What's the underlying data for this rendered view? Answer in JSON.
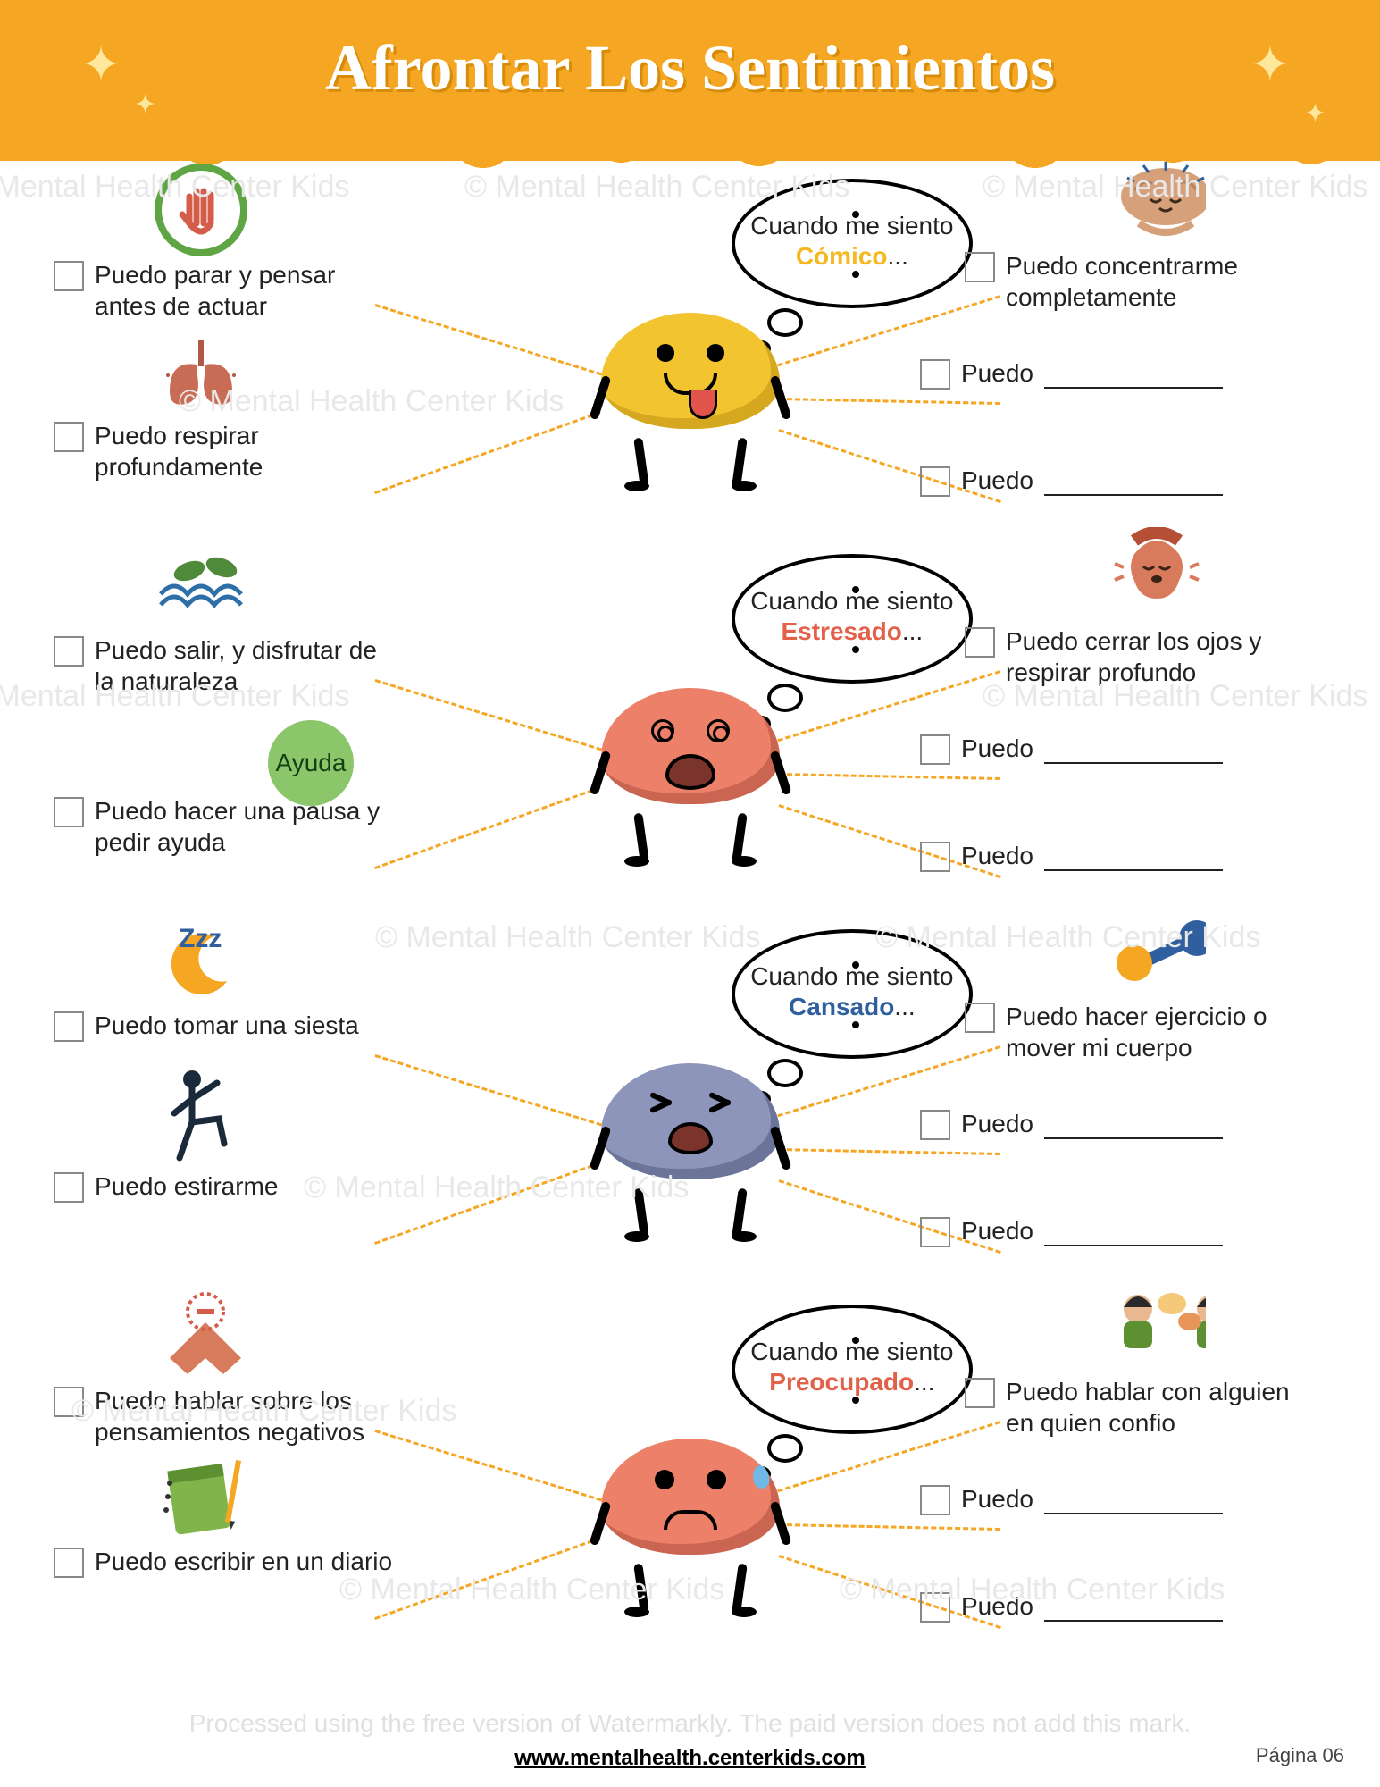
{
  "header": {
    "title": "Afrontar Los Sentimientos"
  },
  "footer": {
    "url": "www.mentalhealth.centerkids.com",
    "page": "Página 06",
    "watermark_bottom": "Processed using the free version of Watermarkly. The paid version does not add this mark."
  },
  "watermark_text": "© Mental Health Center Kids",
  "bubble_prefix": "Cuando me siento",
  "blank_prefix": "Puedo",
  "sections": [
    {
      "feeling": "Cómico",
      "feeling_color": "#f5b820",
      "brain_color": "#f2c430",
      "brain_shadow": "#d6a820",
      "face": "silly",
      "left": [
        {
          "icon": "stop-hand",
          "text": "Puedo parar y pensar antes de actuar"
        },
        {
          "icon": "lungs",
          "text": "Puedo respirar profundamente"
        }
      ],
      "right": [
        {
          "icon": "meditate-brain",
          "text": "Puedo concentrarme completamente"
        },
        {
          "blank": true
        },
        {
          "blank": true
        }
      ]
    },
    {
      "feeling": "Estresado",
      "feeling_color": "#e2614a",
      "brain_color": "#ed8068",
      "brain_shadow": "#c96550",
      "face": "dizzy",
      "left": [
        {
          "icon": "nature",
          "text": "Puedo salir, y disfrutar de la naturaleza"
        },
        {
          "icon": "ayuda",
          "text": "Puedo hacer una pausa y pedir ayuda"
        }
      ],
      "right": [
        {
          "icon": "relax-face",
          "text": "Puedo cerrar los ojos y respirar profundo"
        },
        {
          "blank": true
        },
        {
          "blank": true
        }
      ]
    },
    {
      "feeling": "Cansado",
      "feeling_color": "#2f5f9e",
      "brain_color": "#8d95bb",
      "brain_shadow": "#6c7499",
      "face": "tired",
      "left": [
        {
          "icon": "moon-zzz",
          "text": "Puedo tomar una siesta"
        },
        {
          "icon": "stretch",
          "text": "Puedo estirarme"
        }
      ],
      "right": [
        {
          "icon": "dumbbell",
          "text": "Puedo hacer ejercicio o mover mi cuerpo"
        },
        {
          "blank": true
        },
        {
          "blank": true
        }
      ]
    },
    {
      "feeling": "Preocupado",
      "feeling_color": "#e2614a",
      "brain_color": "#ed8068",
      "brain_shadow": "#c96550",
      "face": "worried",
      "left": [
        {
          "icon": "no-negative",
          "text": "Puedo hablar sobre los pensamientos negativos"
        },
        {
          "icon": "journal",
          "text": "Puedo escribir en un diario"
        }
      ],
      "right": [
        {
          "icon": "talk-people",
          "text": "Puedo hablar con alguien en quien confio"
        },
        {
          "blank": true
        },
        {
          "blank": true
        }
      ]
    }
  ],
  "colors": {
    "header_bg": "#f5a623",
    "dash": "#f5a623",
    "checkbox_border": "#888888",
    "text": "#222222"
  }
}
